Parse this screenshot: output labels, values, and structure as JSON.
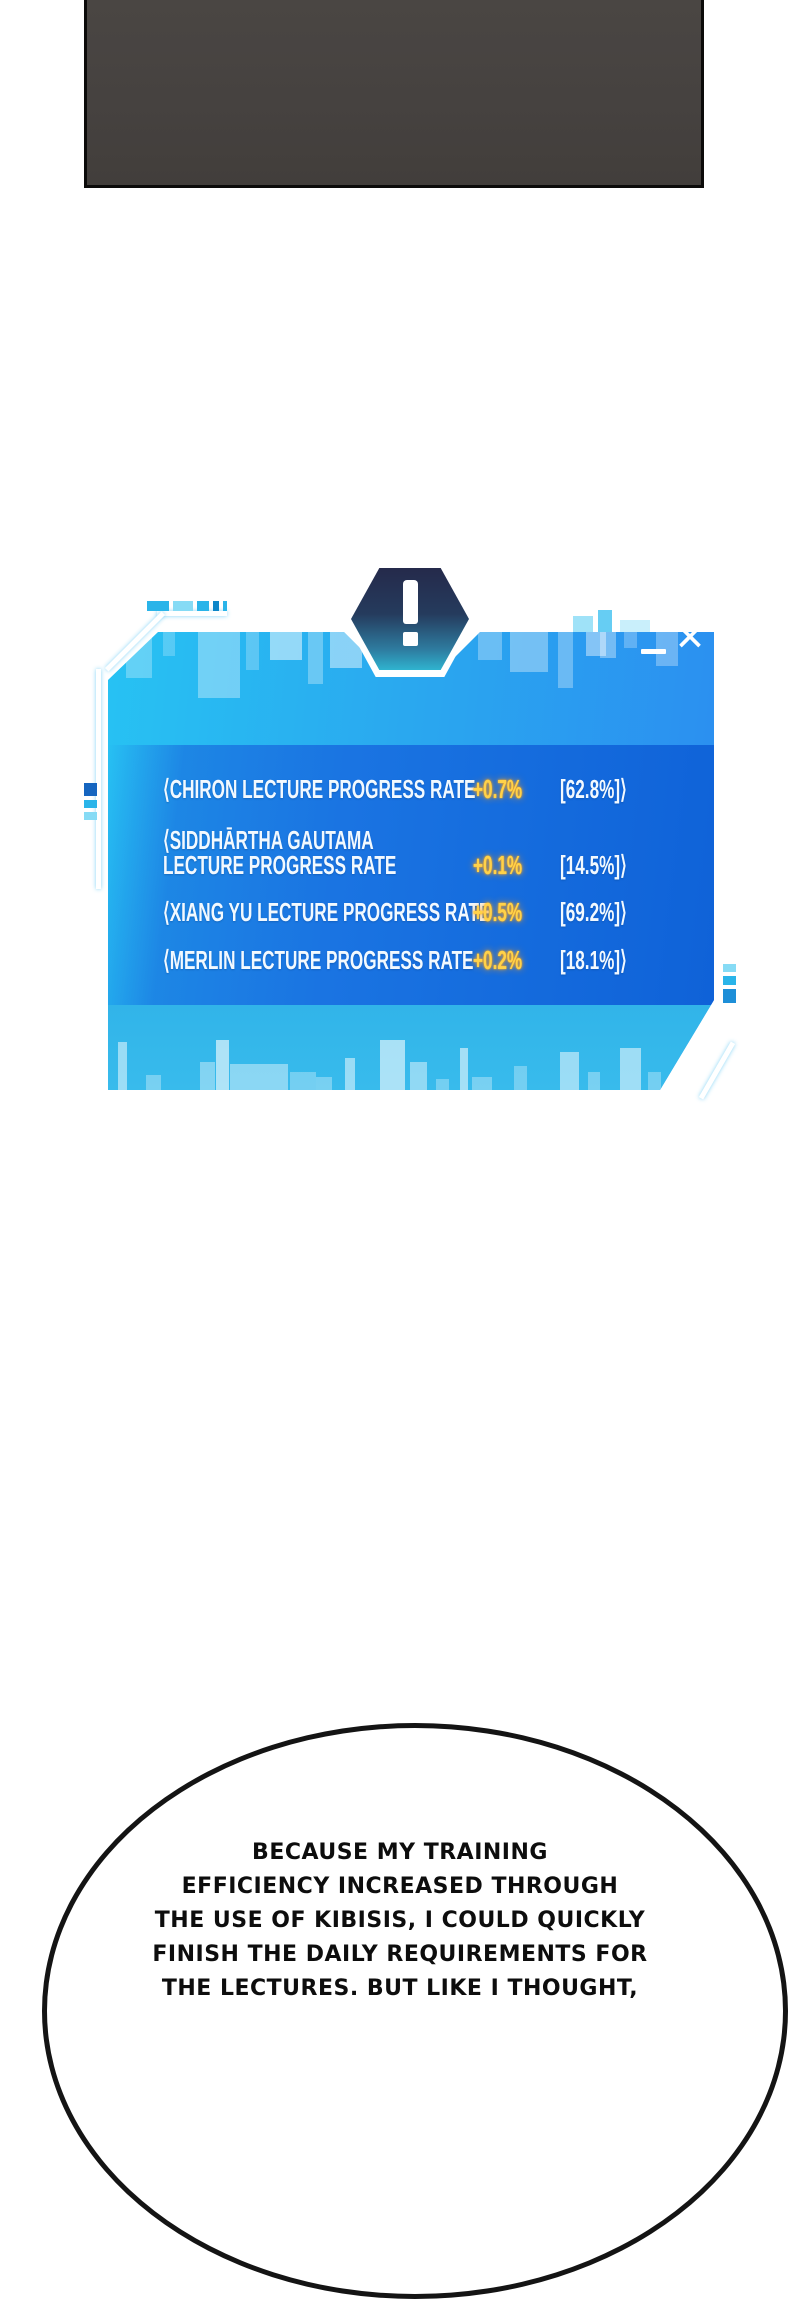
{
  "colors": {
    "window_cyan": "#29c2f2",
    "window_blue": "#0f62d8",
    "band_bottom_cyan": "#35b8ea",
    "hexagon_navy": "#252a4b",
    "value_gold": "#ffd24a",
    "artwork_gray": "#464240",
    "outline_white": "#ffffff"
  },
  "status_window": {
    "alert_glyph": "!",
    "close_glyph": "✕",
    "rows": [
      {
        "label": "⟨CHIRON LECTURE PROGRESS RATE",
        "delta": "+0.7%",
        "total": "[62.8%]⟩"
      },
      {
        "label": "⟨SIDDHĀRTHA GAUTAMA\nLECTURE PROGRESS RATE",
        "delta": "+0.1%",
        "total": "[14.5%]⟩"
      },
      {
        "label": "⟨XIANG YU LECTURE PROGRESS RATE",
        "delta": "+0.5%",
        "total": "[69.2%]⟩"
      },
      {
        "label": "⟨MERLIN LECTURE PROGRESS RATE",
        "delta": "+0.2%",
        "total": "[18.1%]⟩"
      }
    ]
  },
  "speech_bubble": {
    "text": "BECAUSE MY TRAINING\nEFFICIENCY INCREASED THROUGH\nTHE USE OF KIBISIS, I COULD QUICKLY\nFINISH THE DAILY REQUIREMENTS FOR\nTHE LECTURES. BUT LIKE I THOUGHT,"
  }
}
